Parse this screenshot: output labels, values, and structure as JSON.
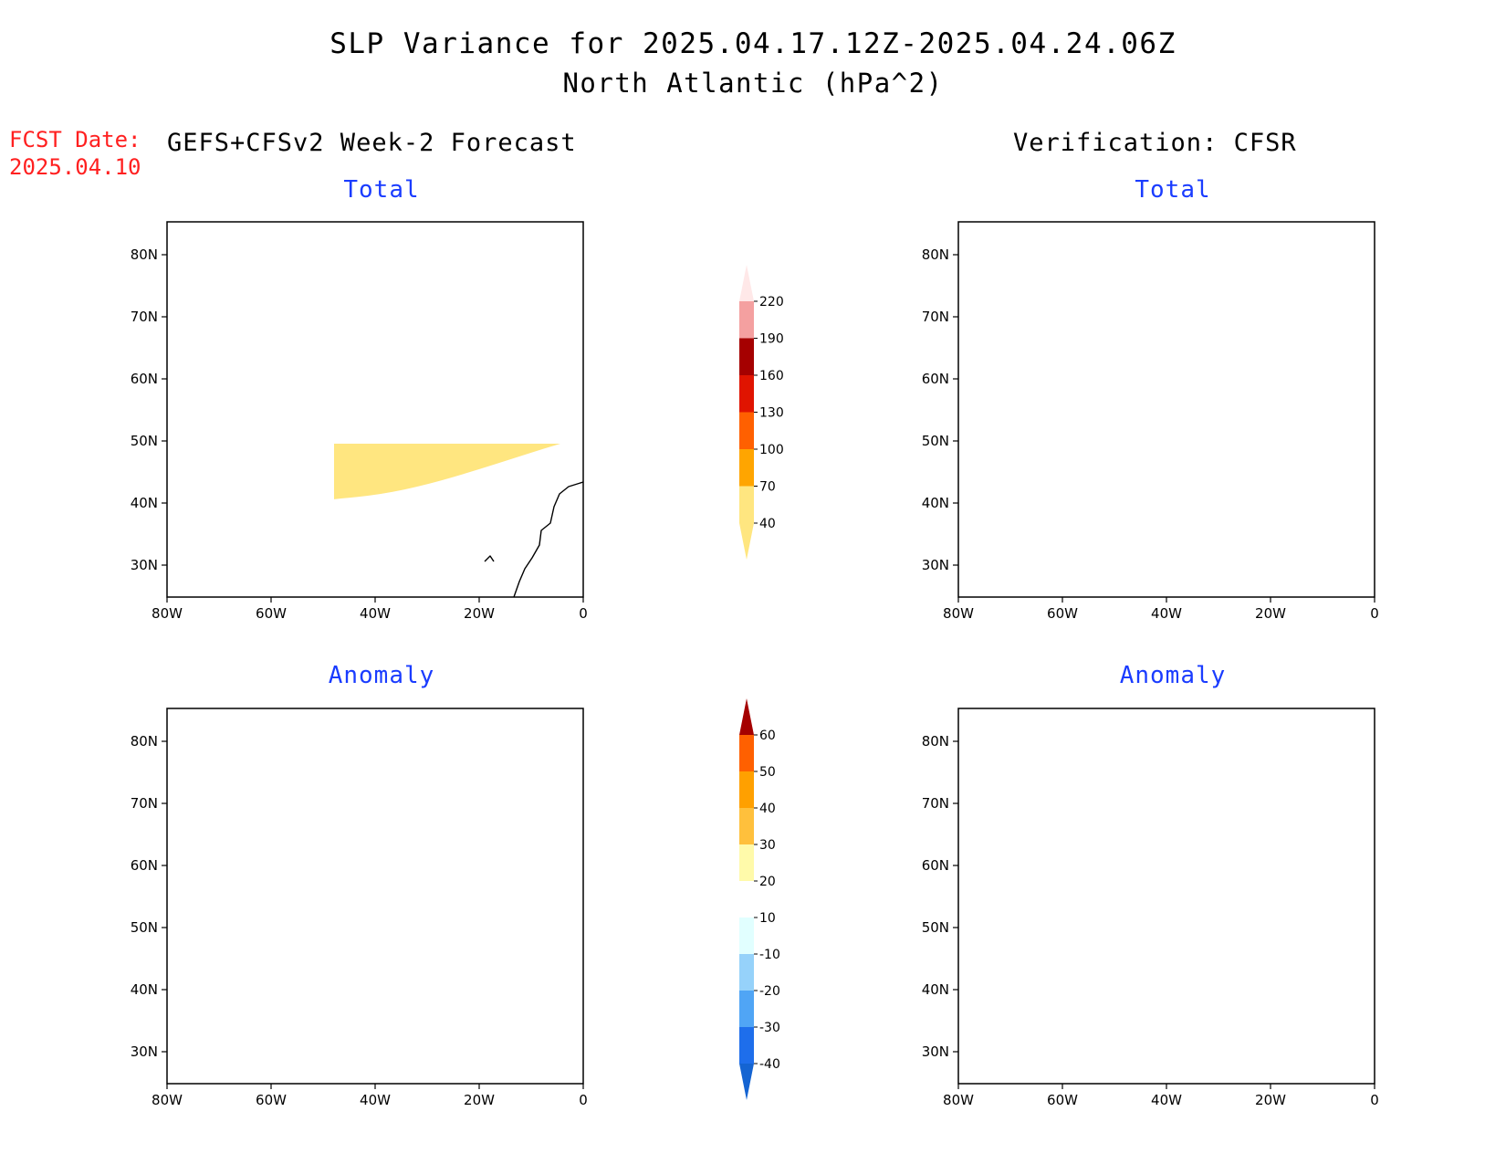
{
  "title": {
    "line1": "SLP Variance for 2025.04.17.12Z-2025.04.24.06Z",
    "line2": "North Atlantic (hPa^2)"
  },
  "forecast_date": {
    "label": "FCST Date:",
    "value": "2025.04.10"
  },
  "columns": {
    "left": "GEFS+CFSv2 Week-2 Forecast",
    "right": "Verification: CFSR"
  },
  "panels": [
    {
      "id": "fcst-total",
      "title": "Total"
    },
    {
      "id": "verif-total",
      "title": "Total"
    },
    {
      "id": "fcst-anomaly",
      "title": "Anomaly"
    },
    {
      "id": "verif-anomaly",
      "title": "Anomaly"
    }
  ],
  "axes": {
    "lon_labels": [
      "80W",
      "60W",
      "40W",
      "20W",
      "0"
    ],
    "lat_labels": [
      "80N",
      "70N",
      "60N",
      "50N",
      "40N",
      "30N"
    ]
  },
  "colorbars": {
    "total": {
      "levels": [
        "40",
        "70",
        "100",
        "130",
        "160",
        "190",
        "220"
      ],
      "colors": [
        "#ffe680",
        "#ffa500",
        "#ff6000",
        "#e01400",
        "#a50000",
        "#f4a0a0",
        "#ffe8e8"
      ]
    },
    "anomaly": {
      "levels": [
        "-40",
        "-30",
        "-20",
        "-10",
        "10",
        "20",
        "30",
        "40",
        "50",
        "60"
      ],
      "colors": [
        "#1464d2",
        "#1e6eeb",
        "#50a5f5",
        "#96d2fa",
        "#e1ffff",
        "#ffffff",
        "#fffaaa",
        "#ffc03c",
        "#ffa000",
        "#ff6000",
        "#e11400",
        "#a50000"
      ]
    }
  }
}
